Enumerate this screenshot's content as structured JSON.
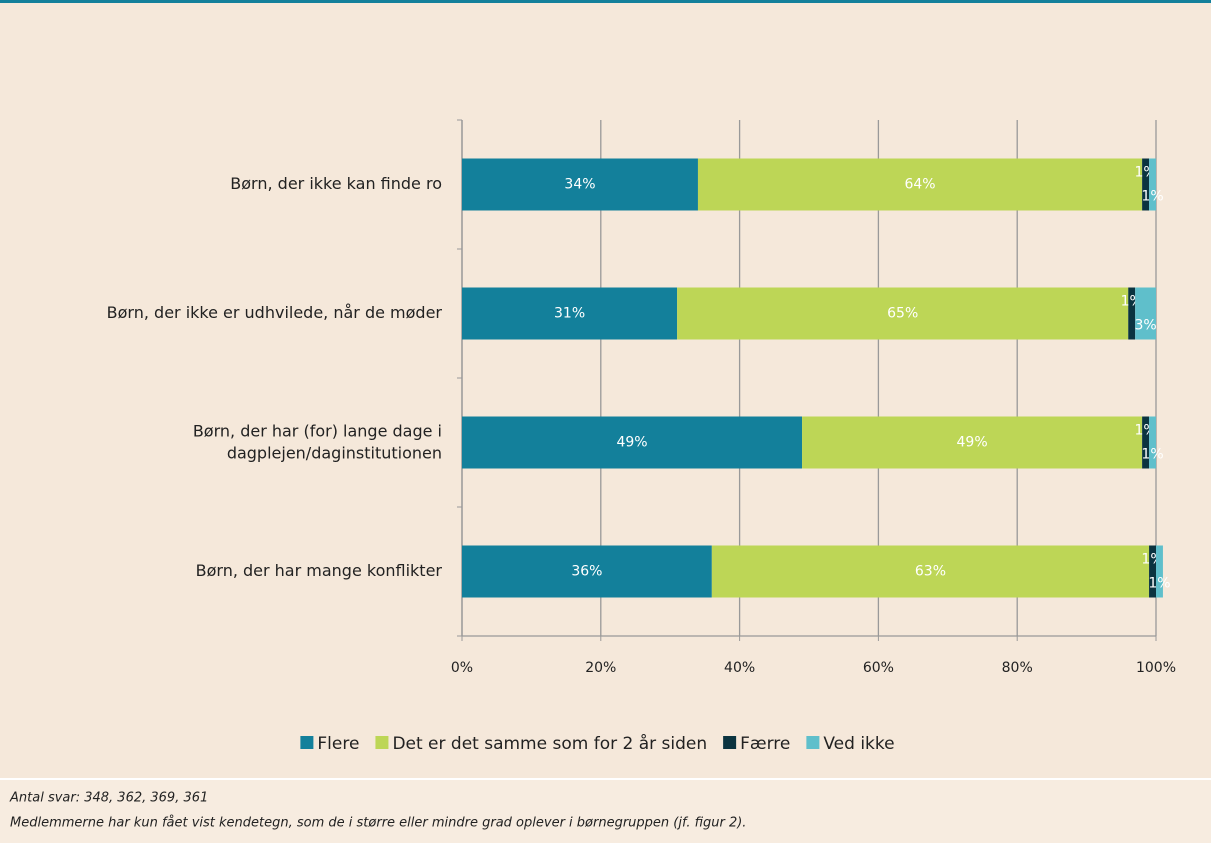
{
  "chart_data": {
    "type": "stacked_barh",
    "categories": [
      "Børn, der ikke kan finde ro",
      "Børn, der ikke er udhvilede, når de møder",
      "Børn, der har (for) lange dage i dagplejen/daginstitutionen",
      "Børn, der har mange konflikter"
    ],
    "series": [
      {
        "name": "Flere",
        "color": "#13809b",
        "values": [
          34,
          31,
          49,
          36
        ],
        "value_labels": [
          "34%",
          "31%",
          "49%",
          "36%"
        ]
      },
      {
        "name": "Det er det samme som for 2 år siden",
        "color": "#bdd656",
        "values": [
          64,
          65,
          49,
          63
        ],
        "value_labels": [
          "64%",
          "65%",
          "49%",
          "63%"
        ]
      },
      {
        "name": "Færre",
        "color": "#0b3440",
        "values": [
          1,
          1,
          1,
          1
        ],
        "value_labels": [
          "1%",
          "1%",
          "1%",
          "1%"
        ]
      },
      {
        "name": "Ved ikke",
        "color": "#5fbfcb",
        "values": [
          1,
          3,
          1,
          1
        ],
        "value_labels": [
          "1%",
          "3%",
          "1%",
          "1%"
        ]
      }
    ],
    "xlim": [
      0,
      100
    ],
    "xticks": [
      {
        "value": 0,
        "label": "0%"
      },
      {
        "value": 20,
        "label": "20%"
      },
      {
        "value": 40,
        "label": "40%"
      },
      {
        "value": 60,
        "label": "60%"
      },
      {
        "value": 80,
        "label": "80%"
      },
      {
        "value": 100,
        "label": "100%"
      }
    ],
    "grid": true,
    "legend": "bottom"
  },
  "footer": {
    "lines": [
      "Antal svar: 348, 362, 369, 361",
      "Medlemmerne har kun fået vist kendetegn, som de i større eller mindre grad oplever i børnegruppen (jf. figur 2)."
    ]
  }
}
